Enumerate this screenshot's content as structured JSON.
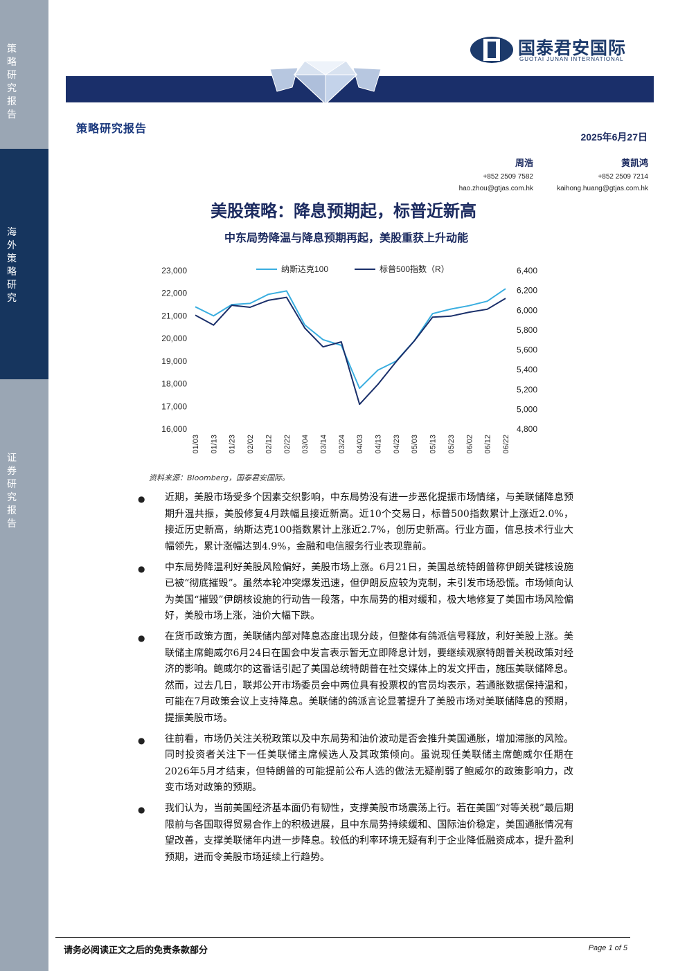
{
  "sidebar": {
    "sections": [
      "策略研究报告",
      "海外策略研究",
      "证券研究报告"
    ]
  },
  "header": {
    "logo_text": "国泰君安国际",
    "logo_sub": "GUOTAI JUNAN INTERNATIONAL",
    "report_type": "策略研究报告",
    "date": "2025年6月27日"
  },
  "authors": [
    {
      "name": "周浩",
      "phone": "+852 2509 7582",
      "email": "hao.zhou@gtjas.com.hk"
    },
    {
      "name": "黄凯鸿",
      "phone": "+852 2509 7214",
      "email": "kaihong.huang@gtjas.com.hk"
    }
  ],
  "title": "美股策略：降息预期起，标普近新高",
  "subtitle": "中东局势降温与降息预期再起，美股重获上升动能",
  "chart_data": {
    "type": "line",
    "x": [
      "01/03",
      "01/13",
      "01/23",
      "02/02",
      "02/12",
      "02/22",
      "03/04",
      "03/14",
      "03/24",
      "04/03",
      "04/13",
      "04/23",
      "05/03",
      "05/13",
      "05/23",
      "06/02",
      "06/12",
      "06/22"
    ],
    "series": [
      {
        "name": "纳斯达克100",
        "axis": "left",
        "color": "#3aaee0",
        "values": [
          21400,
          21000,
          21500,
          21550,
          21950,
          22100,
          20600,
          19950,
          19700,
          17800,
          18600,
          19000,
          19900,
          21100,
          21300,
          21450,
          21650,
          22200
        ]
      },
      {
        "name": "标普500指数（R）",
        "axis": "right",
        "color": "#1a2f6a",
        "values": [
          5950,
          5850,
          6050,
          6030,
          6100,
          6130,
          5820,
          5630,
          5680,
          5050,
          5250,
          5480,
          5690,
          5930,
          5940,
          5980,
          6010,
          6120
        ]
      }
    ],
    "left_axis": {
      "ticks": [
        "23,000",
        "22,000",
        "21,000",
        "20,000",
        "19,000",
        "18,000",
        "17,000",
        "16,000"
      ],
      "range": [
        16000,
        23000
      ]
    },
    "right_axis": {
      "ticks": [
        "6,400",
        "6,200",
        "6,000",
        "5,800",
        "5,600",
        "5,400",
        "5,200",
        "5,000",
        "4,800"
      ],
      "range": [
        4800,
        6400
      ]
    },
    "legend_position": "top"
  },
  "source": "资料来源：Bloomberg，国泰君安国际。",
  "bullets": [
    "近期，美股市场受多个因素交织影响，中东局势没有进一步恶化提振市场情绪，与美联储降息预期升温共振，美股修复4月跌幅且接近新高。近10个交易日，标普500指数累计上涨近2.0%，接近历史新高，纳斯达克100指数累计上涨近2.7%，创历史新高。行业方面，信息技术行业大幅领先，累计涨幅达到4.9%，金融和电信服务行业表现靠前。",
    "中东局势降温利好美股风险偏好，美股市场上涨。6月21日，美国总统特朗普称伊朗关键核设施已被“彻底摧毁”。虽然本轮冲突爆发迅速，但伊朗反应较为克制，未引发市场恐慌。市场倾向认为美国“摧毁”伊朗核设施的行动告一段落，中东局势的相对缓和，极大地修复了美国市场风险偏好，美股市场上涨，油价大幅下跌。",
    "在货币政策方面，美联储内部对降息态度出现分歧，但整体有鸽派信号释放，利好美股上涨。美联储主席鲍威尔6月24日在国会中发言表示暂无立即降息计划，要继续观察特朗普关税政策对经济的影响。鲍威尔的这番话引起了美国总统特朗普在社交媒体上的发文抨击，施压美联储降息。然而，过去几日，联邦公开市场委员会中两位具有投票权的官员均表示，若通胀数据保持温和，可能在7月政策会议上支持降息。美联储的鸽派言论显著提升了美股市场对美联储降息的预期，提振美股市场。",
    "往前看，市场仍关注关税政策以及中东局势和油价波动是否会推升美国通胀，增加滞胀的风险。同时投资者关注下一任美联储主席候选人及其政策倾向。虽说现任美联储主席鲍威尔任期在2026年5月才结束，但特朗普的可能提前公布人选的做法无疑削弱了鲍威尔的政策影响力，改变市场对政策的预期。",
    "我们认为，当前美国经济基本面仍有韧性，支撑美股市场震荡上行。若在美国“对等关税”最后期限前与各国取得贸易合作上的积极进展，且中东局势持续缓和、国际油价稳定，美国通胀情况有望改善，支撑美联储年内进一步降息。较低的利率环境无疑有利于企业降低融资成本，提升盈利预期，进而令美股市场延续上行趋势。"
  ],
  "footer": {
    "disclaimer": "请务必阅读正文之后的免责条款部分",
    "page": "Page 1 of 5"
  }
}
